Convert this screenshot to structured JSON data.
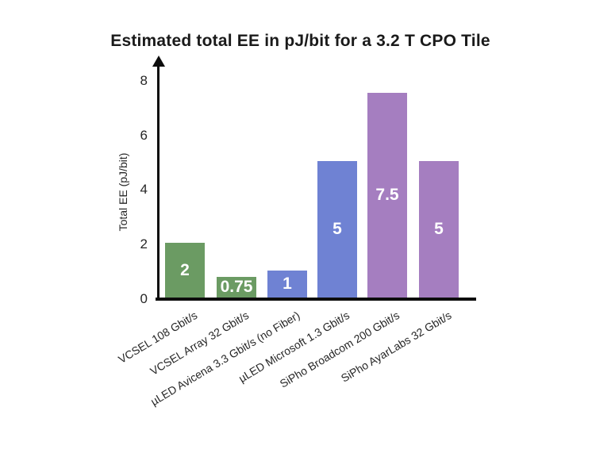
{
  "chart_data": {
    "type": "bar",
    "title": "Estimated total EE in pJ/bit for a 3.2 T CPO Tile",
    "ylabel": "Total EE (pJ/bit)",
    "xlabel": "",
    "ylim": [
      0,
      8
    ],
    "yticks": [
      0,
      2,
      4,
      6,
      8
    ],
    "grid": false,
    "legend_position": "none",
    "categories": [
      "VCSEL 108 Gbit/s",
      "VCSEL Array 32 Gbit/s",
      "µLED Avicena 3.3 Gbit/s (no Fiber)",
      "µLED Microsoft 1.3 Gbit/s",
      "SiPho Broadcom 200 Gbit/s",
      "SiPho AyarLabs 32 Gbit/s"
    ],
    "values": [
      2,
      0.75,
      1,
      5,
      7.5,
      5
    ],
    "value_labels": [
      "2",
      "0.75",
      "1",
      "5",
      "7.5",
      "5"
    ],
    "bar_colors": [
      "#6B9B63",
      "#6B9B63",
      "#6F82D3",
      "#6F82D3",
      "#A57EC0",
      "#A57EC0"
    ],
    "axis_color": "#0d0d0d",
    "value_label_color": "#ffffff"
  }
}
